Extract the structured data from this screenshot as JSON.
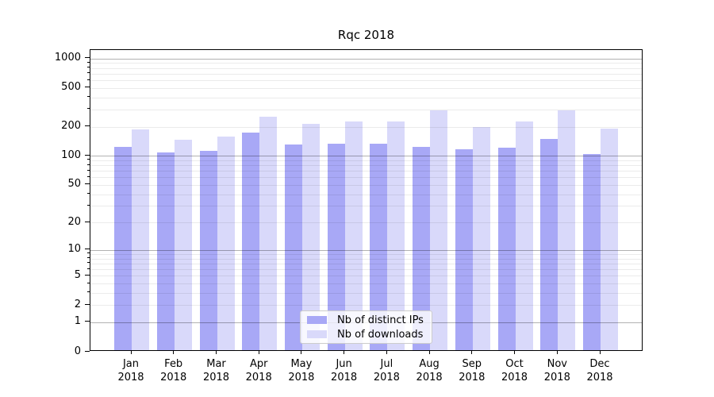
{
  "title": "Rqc 2018",
  "chart_data": {
    "type": "bar",
    "title": "Rqc 2018",
    "categories": [
      "Jan 2018",
      "Feb 2018",
      "Mar 2018",
      "Apr 2018",
      "May 2018",
      "Jun 2018",
      "Jul 2018",
      "Aug 2018",
      "Sep 2018",
      "Oct 2018",
      "Nov 2018",
      "Dec 2018"
    ],
    "series": [
      {
        "name": "Nb of distinct IPs",
        "values": [
          120,
          105,
          109,
          168,
          127,
          129,
          128,
          120,
          112,
          117,
          143,
          100
        ],
        "color": "#a8a8f6"
      },
      {
        "name": "Nb of downloads",
        "values": [
          181,
          142,
          153,
          244,
          206,
          218,
          217,
          284,
          191,
          216,
          285,
          183
        ],
        "color": "#d9d9fa"
      }
    ],
    "xlabel": "",
    "ylabel": "",
    "yscale": "log1p",
    "ylim": [
      0,
      1222
    ],
    "yticks": [
      0,
      1,
      2,
      5,
      10,
      20,
      50,
      100,
      200,
      500,
      1000
    ],
    "yticks_major_grid": [
      1,
      10,
      100,
      1000
    ],
    "yticks_minor_grid": [
      2,
      3,
      4,
      5,
      6,
      7,
      8,
      9,
      20,
      30,
      40,
      50,
      60,
      70,
      80,
      90,
      200,
      300,
      400,
      500,
      600,
      700,
      800,
      900
    ],
    "grid": true,
    "legend_position": "lower center"
  },
  "colors": {
    "ips_bar": "#a8a8f6",
    "downloads_bar": "#d9d9fa",
    "grid_minor": "rgba(0,0,0,0.08)",
    "grid_major": "rgba(0,0,0,0.30)",
    "spine": "#000000",
    "tick": "#000000",
    "text": "#000000",
    "legend_bg": "rgba(255,255,255,0.8)",
    "legend_border": "#cccccc",
    "background": "#ffffff"
  }
}
